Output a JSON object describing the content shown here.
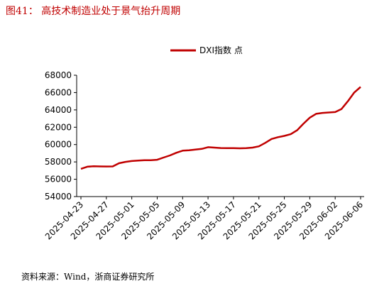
{
  "chart_data": {
    "type": "line",
    "title": "图41： 高技术制造业处于景气抬升周期",
    "source": "资料来源：Wind，浙商证券研究所",
    "categories": [
      "2025-04-23",
      null,
      null,
      null,
      "2025-04-27",
      null,
      null,
      null,
      "2025-05-01",
      null,
      null,
      null,
      "2025-05-05",
      null,
      null,
      null,
      "2025-05-09",
      null,
      null,
      null,
      "2025-05-13",
      null,
      null,
      null,
      "2025-05-17",
      null,
      null,
      null,
      "2025-05-21",
      null,
      null,
      null,
      "2025-05-25",
      null,
      null,
      null,
      "2025-05-29",
      null,
      null,
      null,
      "2025-06-02",
      null,
      null,
      null,
      "2025-06-06"
    ],
    "series": [
      {
        "name": "DXI指数 点",
        "color": "#c00000",
        "values": [
          57200,
          57450,
          57500,
          57480,
          57470,
          57480,
          57850,
          58000,
          58100,
          58150,
          58200,
          58200,
          58250,
          58500,
          58750,
          59050,
          59300,
          59350,
          59420,
          59500,
          59700,
          59650,
          59600,
          59580,
          59580,
          59570,
          59580,
          59650,
          59800,
          60200,
          60650,
          60850,
          61000,
          61200,
          61650,
          62400,
          63100,
          63550,
          63650,
          63700,
          63750,
          64100,
          65000,
          66000,
          66650
        ]
      }
    ],
    "ylim": [
      54000,
      68000
    ],
    "yticks": [
      54000,
      56000,
      58000,
      60000,
      62000,
      64000,
      66000,
      68000
    ],
    "legend": "top"
  }
}
